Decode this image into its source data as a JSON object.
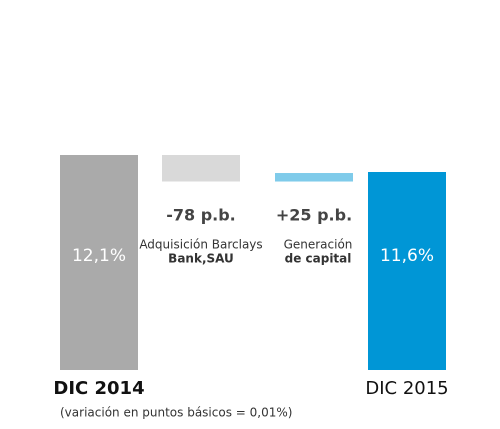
{
  "chart_data": {
    "type": "waterfall",
    "categories": [
      "DIC 2014",
      [
        "Adquisición Barclays",
        "Bank,SAU"
      ],
      [
        "Generación",
        "de capital"
      ],
      "DIC 2015"
    ],
    "values": [
      12.1,
      -0.78,
      0.25,
      11.6
    ],
    "value_labels": [
      "12,1%",
      "-78 p.b.",
      "+25 p.b.",
      "11,6%"
    ],
    "colors": [
      "#aaaaaa",
      "#d9d9d9",
      "#7fcbea",
      "#0096d6"
    ],
    "note": "(variación en puntos básicos = 0,01%)"
  }
}
